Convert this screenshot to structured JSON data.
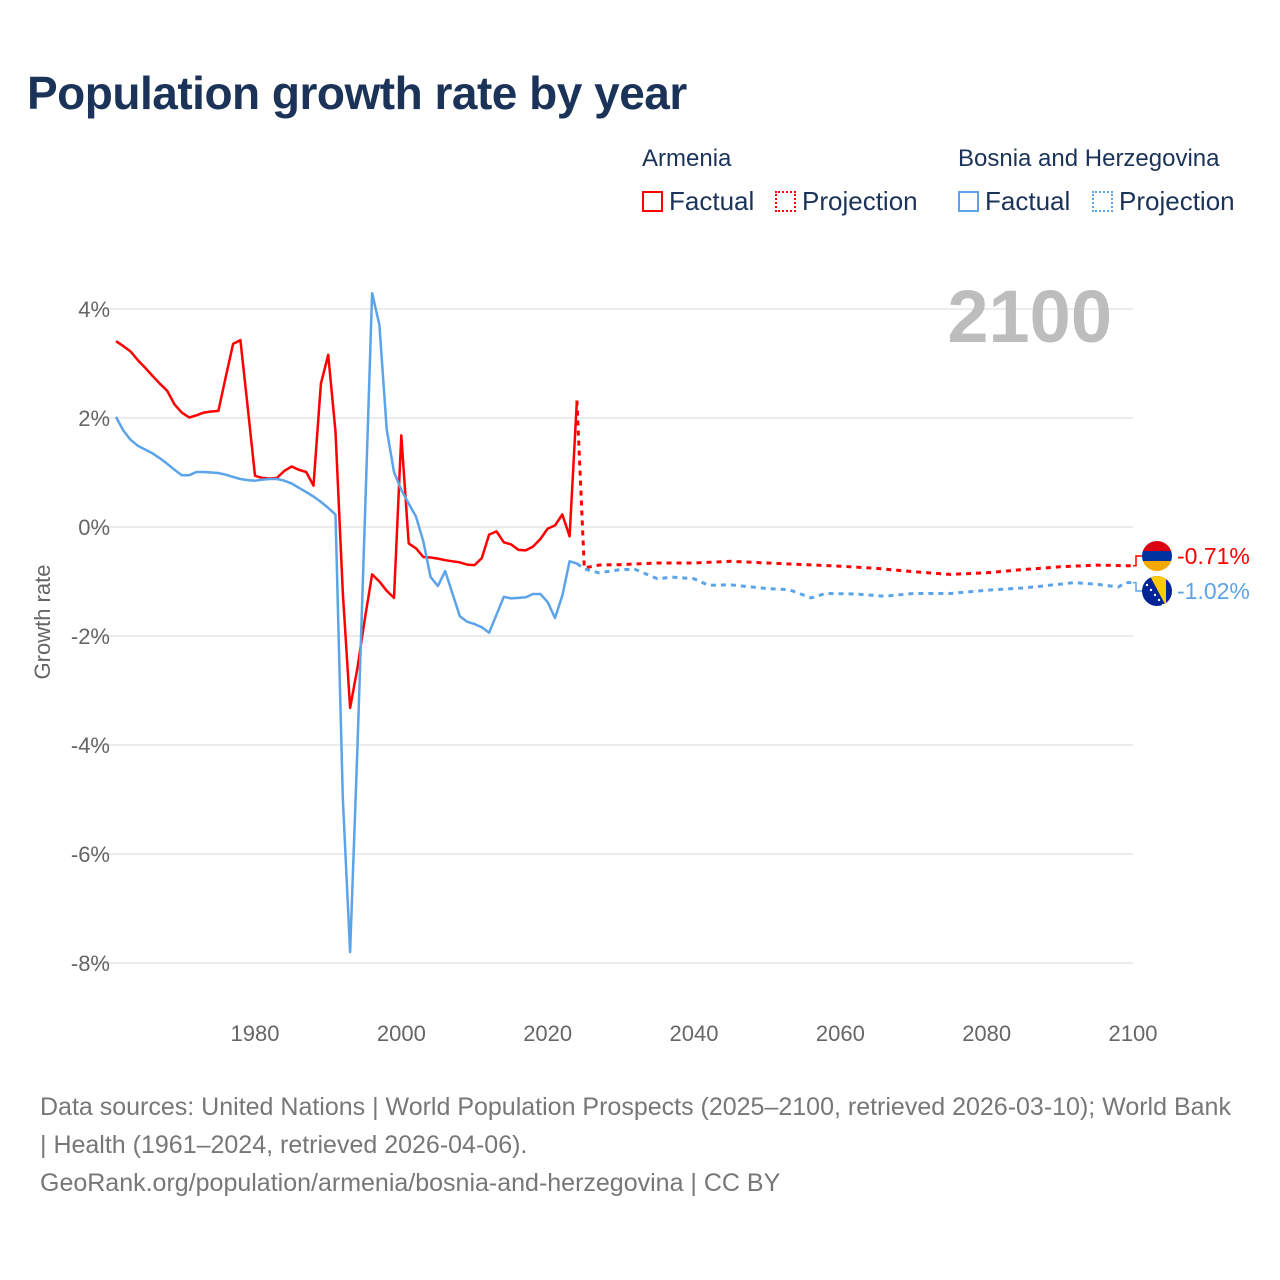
{
  "title": "Population growth rate by year",
  "legend": {
    "groups": [
      {
        "country": "Armenia",
        "factual": "Factual",
        "projection": "Projection",
        "color": "#ff0000"
      },
      {
        "country": "Bosnia and Herzegovina",
        "factual": "Factual",
        "projection": "Projection",
        "color": "#5ba4ea"
      }
    ]
  },
  "year_label": "2100",
  "footer": {
    "sources": "Data sources: United Nations | World Population Prospects (2025–2100, retrieved 2026-03-10); World Bank | Health (1961–2024, retrieved 2026-04-06).",
    "link": "GeoRank.org/population/armenia/bosnia-and-herzegovina | CC BY"
  },
  "chart_data": {
    "type": "line",
    "title": "Population growth rate by year",
    "xlabel": "",
    "ylabel": "Growth rate",
    "xlim": [
      1961,
      2100
    ],
    "ylim": [
      -8.5,
      4.5
    ],
    "x_ticks": [
      1980,
      2000,
      2020,
      2040,
      2060,
      2080,
      2100
    ],
    "x_tick_labels": [
      "1980",
      "2000",
      "2020",
      "2040",
      "2060",
      "2080",
      "2100"
    ],
    "y_ticks": [
      4,
      2,
      0,
      -2,
      -4,
      -6,
      -8
    ],
    "y_tick_labels": [
      "4%",
      "2%",
      "0%",
      "-2%",
      "-4%",
      "-6%",
      "-8%"
    ],
    "grid": true,
    "legend_placement": "top-right",
    "series": [
      {
        "name": "Armenia",
        "kind": "factual",
        "color": "#ff0000",
        "x": [
          1961,
          1962,
          1963,
          1964,
          1965,
          1966,
          1967,
          1968,
          1969,
          1970,
          1971,
          1972,
          1973,
          1974,
          1975,
          1976,
          1977,
          1978,
          1979,
          1980,
          1981,
          1982,
          1983,
          1984,
          1985,
          1986,
          1987,
          1988,
          1989,
          1990,
          1991,
          1992,
          1993,
          1994,
          1995,
          1996,
          1997,
          1998,
          1999,
          2000,
          2001,
          2002,
          2003,
          2004,
          2005,
          2006,
          2007,
          2008,
          2009,
          2010,
          2011,
          2012,
          2013,
          2014,
          2015,
          2016,
          2017,
          2018,
          2019,
          2020,
          2021,
          2022,
          2023,
          2024
        ],
        "y": [
          3.41,
          3.32,
          3.22,
          3.06,
          2.92,
          2.77,
          2.63,
          2.5,
          2.25,
          2.1,
          2.01,
          2.05,
          2.1,
          2.12,
          2.13,
          2.75,
          3.36,
          3.43,
          2.2,
          0.94,
          0.9,
          0.89,
          0.9,
          1.03,
          1.11,
          1.05,
          1.01,
          0.76,
          2.63,
          3.16,
          1.75,
          -1.2,
          -3.32,
          -2.59,
          -1.69,
          -0.87,
          -1.0,
          -1.17,
          -1.3,
          1.68,
          -0.3,
          -0.39,
          -0.55,
          -0.56,
          -0.58,
          -0.61,
          -0.63,
          -0.65,
          -0.69,
          -0.7,
          -0.57,
          -0.14,
          -0.08,
          -0.28,
          -0.32,
          -0.42,
          -0.43,
          -0.36,
          -0.22,
          -0.03,
          0.03,
          0.23,
          -0.17,
          2.32
        ]
      },
      {
        "name": "Armenia",
        "kind": "projection",
        "color": "#ff0000",
        "x": [
          2024,
          2025,
          2027,
          2030,
          2035,
          2040,
          2045,
          2050,
          2055,
          2060,
          2065,
          2070,
          2075,
          2080,
          2085,
          2090,
          2095,
          2099,
          2100
        ],
        "y": [
          2.32,
          -0.75,
          -0.7,
          -0.69,
          -0.66,
          -0.66,
          -0.63,
          -0.66,
          -0.69,
          -0.72,
          -0.76,
          -0.82,
          -0.87,
          -0.84,
          -0.78,
          -0.73,
          -0.7,
          -0.71,
          -0.71
        ],
        "last_value_label": "-0.71%"
      },
      {
        "name": "Bosnia and Herzegovina",
        "kind": "factual",
        "color": "#5ba4ea",
        "x": [
          1961,
          1962,
          1963,
          1964,
          1965,
          1966,
          1967,
          1968,
          1969,
          1970,
          1971,
          1972,
          1973,
          1974,
          1975,
          1976,
          1977,
          1978,
          1979,
          1980,
          1981,
          1982,
          1983,
          1984,
          1985,
          1986,
          1987,
          1988,
          1989,
          1990,
          1991,
          1992,
          1993,
          1994,
          1995,
          1996,
          1997,
          1998,
          1999,
          2000,
          2001,
          2002,
          2003,
          2004,
          2005,
          2006,
          2007,
          2008,
          2009,
          2010,
          2011,
          2012,
          2013,
          2014,
          2015,
          2016,
          2017,
          2018,
          2019,
          2020,
          2021,
          2022,
          2023,
          2024
        ],
        "y": [
          2.02,
          1.77,
          1.6,
          1.49,
          1.42,
          1.35,
          1.26,
          1.16,
          1.05,
          0.95,
          0.95,
          1.01,
          1.01,
          1.0,
          0.99,
          0.96,
          0.92,
          0.88,
          0.86,
          0.85,
          0.87,
          0.88,
          0.88,
          0.85,
          0.8,
          0.72,
          0.64,
          0.56,
          0.46,
          0.35,
          0.23,
          -4.97,
          -7.8,
          -4.07,
          0.1,
          4.29,
          3.71,
          1.79,
          1.01,
          0.68,
          0.43,
          0.19,
          -0.26,
          -0.92,
          -1.08,
          -0.81,
          -1.23,
          -1.64,
          -1.74,
          -1.78,
          -1.84,
          -1.94,
          -1.61,
          -1.28,
          -1.31,
          -1.3,
          -1.29,
          -1.23,
          -1.23,
          -1.38,
          -1.67,
          -1.26,
          -0.63,
          -0.67
        ]
      },
      {
        "name": "Bosnia and Herzegovina",
        "kind": "projection",
        "color": "#5ba4ea",
        "x": [
          2024,
          2025,
          2027,
          2030,
          2032,
          2035,
          2037,
          2040,
          2042,
          2045,
          2050,
          2053,
          2056,
          2058,
          2062,
          2066,
          2070,
          2075,
          2080,
          2085,
          2090,
          2092,
          2095,
          2098,
          2099,
          2100
        ],
        "y": [
          -0.67,
          -0.77,
          -0.84,
          -0.78,
          -0.78,
          -0.95,
          -0.92,
          -0.95,
          -1.07,
          -1.06,
          -1.13,
          -1.15,
          -1.3,
          -1.22,
          -1.23,
          -1.27,
          -1.22,
          -1.22,
          -1.16,
          -1.12,
          -1.05,
          -1.02,
          -1.05,
          -1.1,
          -1.02,
          -1.02
        ],
        "last_value_label": "-1.02%"
      }
    ]
  }
}
